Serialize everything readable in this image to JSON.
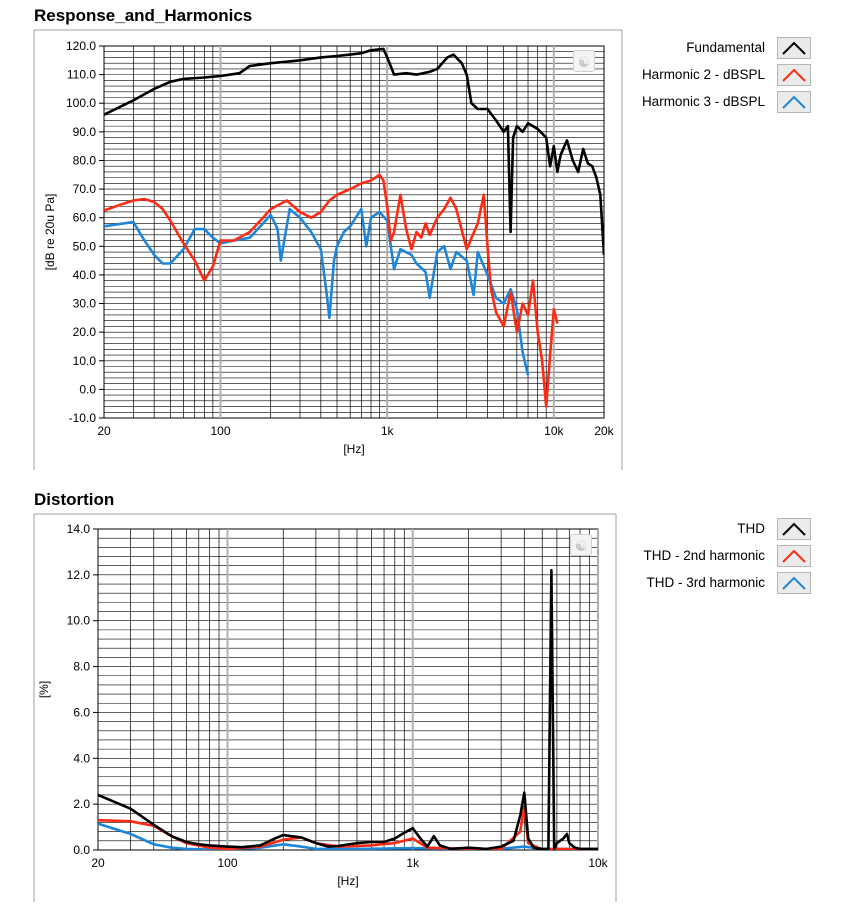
{
  "charts": {
    "response": {
      "title": "Response_and_Harmonics",
      "ylabel": "[dB re 20u Pa]",
      "xlabel": "[Hz]",
      "ytick_labels": [
        "120.0",
        "110.0",
        "100.0",
        "90.0",
        "80.0",
        "70.0",
        "60.0",
        "50.0",
        "40.0",
        "30.0",
        "20.0",
        "10.0",
        "0.0",
        "-10.0"
      ],
      "xtick_labels": [
        "20",
        "100",
        "1k",
        "10k",
        "20k"
      ],
      "legend": [
        {
          "label": "Fundamental",
          "color": "#000000"
        },
        {
          "label": "Harmonic 2 - dBSPL",
          "color": "#ff2a12"
        },
        {
          "label": "Harmonic 3 - dBSPL",
          "color": "#1e86d8"
        }
      ]
    },
    "distortion": {
      "title": "Distortion",
      "ylabel": "[%]",
      "xlabel": "[Hz]",
      "ytick_labels": [
        "14.0",
        "12.0",
        "10.0",
        "8.0",
        "6.0",
        "4.0",
        "2.0",
        "0.0"
      ],
      "xtick_labels": [
        "20",
        "100",
        "1k",
        "10k"
      ],
      "legend": [
        {
          "label": "THD",
          "color": "#000000"
        },
        {
          "label": "THD - 2nd harmonic",
          "color": "#ff2a12"
        },
        {
          "label": "THD - 3rd harmonic",
          "color": "#1e86d8"
        }
      ]
    }
  },
  "chart_data": [
    {
      "type": "line",
      "title": "Response_and_Harmonics",
      "xlabel": "[Hz]",
      "ylabel": "[dB re 20u Pa]",
      "xscale": "log",
      "xlim": [
        20,
        20000
      ],
      "ylim": [
        -10,
        120
      ],
      "grid": true,
      "legend_position": "right",
      "series": [
        {
          "name": "Fundamental",
          "color": "#000000",
          "points": [
            [
              20,
              96
            ],
            [
              30,
              101
            ],
            [
              40,
              105
            ],
            [
              50,
              107.5
            ],
            [
              60,
              108.5
            ],
            [
              80,
              109
            ],
            [
              100,
              109.5
            ],
            [
              130,
              110.5
            ],
            [
              150,
              113
            ],
            [
              200,
              114
            ],
            [
              250,
              114.5
            ],
            [
              300,
              115
            ],
            [
              400,
              116
            ],
            [
              500,
              116.5
            ],
            [
              600,
              117
            ],
            [
              700,
              117.5
            ],
            [
              800,
              118.5
            ],
            [
              950,
              119
            ],
            [
              1000,
              116
            ],
            [
              1100,
              110
            ],
            [
              1300,
              110.5
            ],
            [
              1500,
              110
            ],
            [
              1800,
              111
            ],
            [
              2000,
              112
            ],
            [
              2300,
              116
            ],
            [
              2500,
              117
            ],
            [
              2800,
              114
            ],
            [
              3000,
              110
            ],
            [
              3200,
              100
            ],
            [
              3500,
              98
            ],
            [
              4000,
              98
            ],
            [
              4500,
              94
            ],
            [
              5000,
              90
            ],
            [
              5300,
              92
            ],
            [
              5500,
              55
            ],
            [
              5700,
              88
            ],
            [
              6000,
              92
            ],
            [
              6500,
              90
            ],
            [
              7000,
              93
            ],
            [
              8000,
              91
            ],
            [
              9000,
              88
            ],
            [
              9500,
              78
            ],
            [
              10000,
              85
            ],
            [
              10500,
              76
            ],
            [
              11000,
              82
            ],
            [
              12000,
              87
            ],
            [
              13000,
              80
            ],
            [
              14000,
              76
            ],
            [
              15000,
              84
            ],
            [
              16000,
              79
            ],
            [
              17000,
              78
            ],
            [
              18000,
              74
            ],
            [
              19000,
              68
            ],
            [
              20000,
              47
            ]
          ]
        },
        {
          "name": "Harmonic 2 - dBSPL",
          "color": "#ff2a12",
          "points": [
            [
              20,
              62.5
            ],
            [
              25,
              64.5
            ],
            [
              30,
              66
            ],
            [
              35,
              66.5
            ],
            [
              40,
              65.5
            ],
            [
              45,
              63
            ],
            [
              50,
              59
            ],
            [
              60,
              51
            ],
            [
              70,
              45
            ],
            [
              80,
              38
            ],
            [
              90,
              43
            ],
            [
              100,
              52
            ],
            [
              120,
              52
            ],
            [
              150,
              55
            ],
            [
              180,
              60
            ],
            [
              200,
              63
            ],
            [
              250,
              66
            ],
            [
              300,
              62
            ],
            [
              350,
              60
            ],
            [
              400,
              62
            ],
            [
              450,
              66
            ],
            [
              500,
              68
            ],
            [
              600,
              70
            ],
            [
              700,
              72
            ],
            [
              800,
              73
            ],
            [
              900,
              75
            ],
            [
              950,
              73
            ],
            [
              1000,
              64
            ],
            [
              1050,
              52
            ],
            [
              1100,
              55
            ],
            [
              1200,
              68
            ],
            [
              1300,
              56
            ],
            [
              1400,
              49
            ],
            [
              1500,
              55
            ],
            [
              1600,
              53
            ],
            [
              1700,
              58
            ],
            [
              1800,
              54
            ],
            [
              2000,
              60
            ],
            [
              2200,
              63
            ],
            [
              2400,
              67
            ],
            [
              2600,
              63
            ],
            [
              3000,
              49
            ],
            [
              3500,
              58
            ],
            [
              3800,
              68
            ],
            [
              4000,
              50
            ],
            [
              4200,
              35
            ],
            [
              4500,
              27
            ],
            [
              5000,
              22
            ],
            [
              5500,
              34
            ],
            [
              6000,
              20
            ],
            [
              6500,
              30
            ],
            [
              7000,
              26
            ],
            [
              7500,
              38
            ],
            [
              8000,
              20
            ],
            [
              8500,
              10
            ],
            [
              9000,
              -6
            ],
            [
              9500,
              12
            ],
            [
              10000,
              28
            ],
            [
              10500,
              23
            ]
          ]
        },
        {
          "name": "Harmonic 3 - dBSPL",
          "color": "#1e86d8",
          "points": [
            [
              20,
              57
            ],
            [
              30,
              58.5
            ],
            [
              35,
              52
            ],
            [
              40,
              47
            ],
            [
              45,
              44
            ],
            [
              50,
              44
            ],
            [
              60,
              49
            ],
            [
              70,
              56
            ],
            [
              80,
              56
            ],
            [
              90,
              53
            ],
            [
              100,
              51
            ],
            [
              120,
              52
            ],
            [
              150,
              53
            ],
            [
              180,
              58
            ],
            [
              200,
              61
            ],
            [
              220,
              56
            ],
            [
              230,
              45
            ],
            [
              260,
              63
            ],
            [
              300,
              60
            ],
            [
              350,
              55
            ],
            [
              400,
              49
            ],
            [
              430,
              35
            ],
            [
              450,
              25
            ],
            [
              480,
              45
            ],
            [
              500,
              50
            ],
            [
              550,
              55
            ],
            [
              600,
              57
            ],
            [
              700,
              63
            ],
            [
              750,
              50
            ],
            [
              800,
              60
            ],
            [
              900,
              62
            ],
            [
              1000,
              59
            ],
            [
              1100,
              42
            ],
            [
              1200,
              49
            ],
            [
              1400,
              47
            ],
            [
              1500,
              44
            ],
            [
              1700,
              41
            ],
            [
              1800,
              32
            ],
            [
              2000,
              48
            ],
            [
              2200,
              50
            ],
            [
              2400,
              42
            ],
            [
              2600,
              48
            ],
            [
              3000,
              45
            ],
            [
              3300,
              33
            ],
            [
              3500,
              48
            ],
            [
              4000,
              40
            ],
            [
              4500,
              32
            ],
            [
              5000,
              30
            ],
            [
              5500,
              35
            ],
            [
              6000,
              28
            ],
            [
              6500,
              13
            ],
            [
              7000,
              5
            ]
          ]
        }
      ]
    },
    {
      "type": "line",
      "title": "Distortion",
      "xlabel": "[Hz]",
      "ylabel": "[%]",
      "xscale": "log",
      "xlim": [
        20,
        10000
      ],
      "ylim": [
        0,
        14
      ],
      "grid": true,
      "legend_position": "right",
      "series": [
        {
          "name": "THD",
          "color": "#000000",
          "points": [
            [
              20,
              2.4
            ],
            [
              30,
              1.8
            ],
            [
              40,
              1.1
            ],
            [
              50,
              0.6
            ],
            [
              60,
              0.35
            ],
            [
              70,
              0.25
            ],
            [
              80,
              0.2
            ],
            [
              100,
              0.15
            ],
            [
              120,
              0.12
            ],
            [
              150,
              0.2
            ],
            [
              180,
              0.5
            ],
            [
              200,
              0.65
            ],
            [
              250,
              0.55
            ],
            [
              300,
              0.3
            ],
            [
              350,
              0.15
            ],
            [
              400,
              0.18
            ],
            [
              500,
              0.3
            ],
            [
              600,
              0.35
            ],
            [
              700,
              0.35
            ],
            [
              800,
              0.5
            ],
            [
              900,
              0.75
            ],
            [
              1000,
              0.95
            ],
            [
              1100,
              0.5
            ],
            [
              1200,
              0.15
            ],
            [
              1300,
              0.6
            ],
            [
              1400,
              0.2
            ],
            [
              1600,
              0.05
            ],
            [
              2000,
              0.1
            ],
            [
              2500,
              0.05
            ],
            [
              3000,
              0.15
            ],
            [
              3500,
              0.4
            ],
            [
              3800,
              1.5
            ],
            [
              4000,
              2.5
            ],
            [
              4200,
              0.5
            ],
            [
              4500,
              0.1
            ],
            [
              5000,
              0.05
            ],
            [
              5400,
              0.05
            ],
            [
              5600,
              12.2
            ],
            [
              5800,
              0.05
            ],
            [
              6000,
              0.3
            ],
            [
              6500,
              0.5
            ],
            [
              6800,
              0.7
            ],
            [
              7000,
              0.3
            ],
            [
              7500,
              0.1
            ],
            [
              8000,
              0.05
            ],
            [
              10000,
              0.05
            ]
          ]
        },
        {
          "name": "THD - 2nd harmonic",
          "color": "#ff2a12",
          "points": [
            [
              20,
              1.3
            ],
            [
              30,
              1.25
            ],
            [
              40,
              1.05
            ],
            [
              50,
              0.6
            ],
            [
              60,
              0.3
            ],
            [
              80,
              0.1
            ],
            [
              100,
              0.05
            ],
            [
              150,
              0.15
            ],
            [
              200,
              0.45
            ],
            [
              250,
              0.55
            ],
            [
              300,
              0.3
            ],
            [
              400,
              0.15
            ],
            [
              600,
              0.2
            ],
            [
              800,
              0.3
            ],
            [
              1000,
              0.5
            ],
            [
              1200,
              0.1
            ],
            [
              2000,
              0.05
            ],
            [
              3000,
              0.05
            ],
            [
              3800,
              0.8
            ],
            [
              4000,
              1.9
            ],
            [
              4200,
              0.3
            ],
            [
              5000,
              0.02
            ],
            [
              6000,
              0.05
            ],
            [
              10000,
              0.02
            ]
          ]
        },
        {
          "name": "THD - 3rd harmonic",
          "color": "#1e86d8",
          "points": [
            [
              20,
              1.15
            ],
            [
              25,
              0.9
            ],
            [
              30,
              0.7
            ],
            [
              40,
              0.25
            ],
            [
              50,
              0.1
            ],
            [
              60,
              0.05
            ],
            [
              80,
              0.02
            ],
            [
              100,
              0.05
            ],
            [
              150,
              0.1
            ],
            [
              200,
              0.25
            ],
            [
              250,
              0.15
            ],
            [
              300,
              0.05
            ],
            [
              500,
              0.05
            ],
            [
              1000,
              0.08
            ],
            [
              2000,
              0.05
            ],
            [
              3000,
              0.05
            ],
            [
              4000,
              0.15
            ],
            [
              5000,
              0.05
            ],
            [
              10000,
              0.05
            ]
          ]
        }
      ]
    }
  ]
}
